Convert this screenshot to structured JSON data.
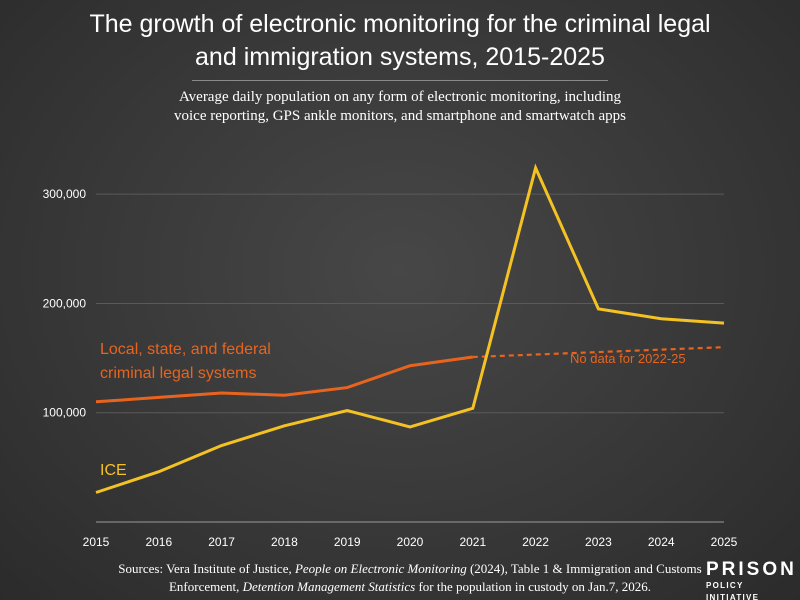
{
  "chart_data": {
    "type": "line",
    "title_lines": [
      "The growth of electronic monitoring for the criminal legal",
      "and immigration systems, 2015-2025"
    ],
    "subtitle_lines": [
      "Average daily population on any form of electronic monitoring, including",
      "voice reporting, GPS ankle monitors, and smartphone and smartwatch apps"
    ],
    "x": [
      2015,
      2016,
      2017,
      2018,
      2019,
      2020,
      2021,
      2022,
      2023,
      2024,
      2025
    ],
    "x_tick_labels": [
      "2015",
      "2016",
      "2017",
      "2018",
      "2019",
      "2020",
      "2021",
      "2022",
      "2023",
      "2024",
      "2025"
    ],
    "y_ticks": [
      100000,
      200000,
      300000
    ],
    "y_tick_labels": [
      "100,000",
      "200,000",
      "300,000"
    ],
    "ylim": [
      0,
      345000
    ],
    "grid": true,
    "series": [
      {
        "name_lines": [
          "Local, state, and federal",
          "criminal legal systems"
        ],
        "color": "#e8641e",
        "x": [
          2015,
          2016,
          2017,
          2018,
          2019,
          2020,
          2021
        ],
        "values": [
          110000,
          114000,
          118000,
          116000,
          123000,
          143000,
          151000
        ],
        "projection": {
          "x": [
            2021,
            2025
          ],
          "values": [
            151000,
            160000
          ],
          "label": "No data for 2022-25"
        }
      },
      {
        "name_lines": [
          "ICE"
        ],
        "color": "#f5c223",
        "x": [
          2015,
          2016,
          2017,
          2018,
          2019,
          2020,
          2021,
          2022,
          2023,
          2024,
          2025
        ],
        "values": [
          27000,
          46000,
          70000,
          88000,
          102000,
          87000,
          104000,
          324000,
          195000,
          186000,
          182000
        ]
      }
    ],
    "source": {
      "prefix": "Sources: Vera Institute of Justice, ",
      "work1": "People on Electronic Monitoring",
      "mid": " (2024), Table 1 & Immigration and Customs Enforcement, ",
      "work2": "Detention Management Statistics",
      "suffix": " for the population in custody on Jan.7, 2026."
    },
    "logo": {
      "line1": "PRISON",
      "line2": "POLICY INITIATIVE"
    }
  }
}
